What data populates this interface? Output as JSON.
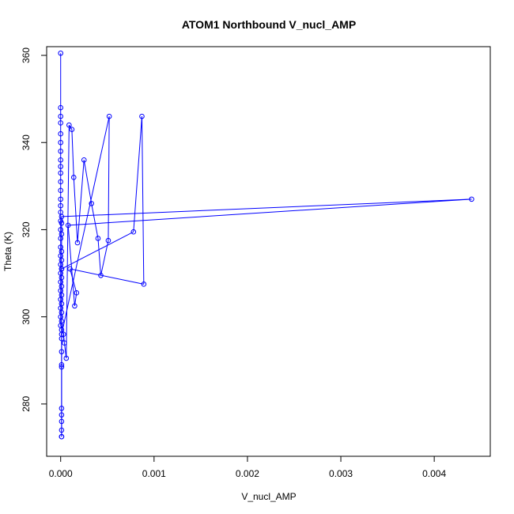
{
  "chart_data": {
    "type": "line",
    "title": "ATOM1 Northbound V_nucl_AMP",
    "xlabel": "V_nucl_AMP",
    "ylabel": "Theta (K)",
    "xlim": [
      -0.00015,
      0.0046
    ],
    "ylim": [
      268,
      362
    ],
    "x_ticks": [
      0,
      0.001,
      0.002,
      0.003,
      0.004
    ],
    "x_tick_labels": [
      "0.000",
      "0.001",
      "0.002",
      "0.003",
      "0.004"
    ],
    "y_ticks": [
      280,
      300,
      320,
      340,
      360
    ],
    "y_tick_labels": [
      "280",
      "300",
      "320",
      "340",
      "360"
    ],
    "grid": false,
    "legend": "none",
    "series": [
      {
        "color": "#0000ff",
        "marker": "open-circle",
        "x": [
          0,
          0,
          0,
          0,
          0,
          0,
          0,
          0,
          0,
          0,
          0,
          0,
          0,
          0,
          0,
          0,
          0,
          0,
          0,
          0,
          0,
          0,
          0,
          0,
          0,
          0,
          0,
          0,
          3e-05,
          4e-05,
          6e-05,
          9e-05,
          0.00012,
          0.00014,
          0.00018,
          0.00025,
          0.00033,
          0.0004,
          0.00043,
          0.00051,
          0.00052,
          1e-05,
          1e-05,
          1e-05,
          1e-05,
          1e-05,
          1e-05,
          1e-05,
          1e-05,
          1e-05,
          1e-05,
          1e-05,
          1e-05,
          0.00078,
          0.00087,
          0.00089,
          0.0001,
          0.00017,
          0.00015,
          8e-05,
          0.0044,
          1e-05,
          1e-05,
          1e-05,
          1e-05,
          1e-05,
          1e-05,
          1e-05,
          1e-05,
          1e-05,
          1e-05,
          1e-05,
          1e-05,
          1e-05
        ],
        "y": [
          360.5,
          348,
          346,
          344.5,
          342,
          340,
          338,
          336,
          334.5,
          333,
          331,
          329,
          327,
          325.5,
          324,
          322,
          320,
          318,
          316,
          314,
          312,
          310,
          308,
          306,
          304,
          302,
          300,
          298,
          296,
          294,
          290.5,
          344,
          343,
          332,
          317,
          336,
          326,
          318,
          309.5,
          317.5,
          346,
          296,
          295,
          292,
          289,
          288.5,
          279,
          277.5,
          276,
          274,
          272.5,
          272.5,
          311,
          319.5,
          346,
          307.5,
          311,
          305.5,
          302.5,
          321,
          327,
          323,
          321.5,
          319,
          315,
          313,
          311,
          309,
          307,
          305,
          303,
          301,
          299,
          297
        ]
      }
    ]
  }
}
